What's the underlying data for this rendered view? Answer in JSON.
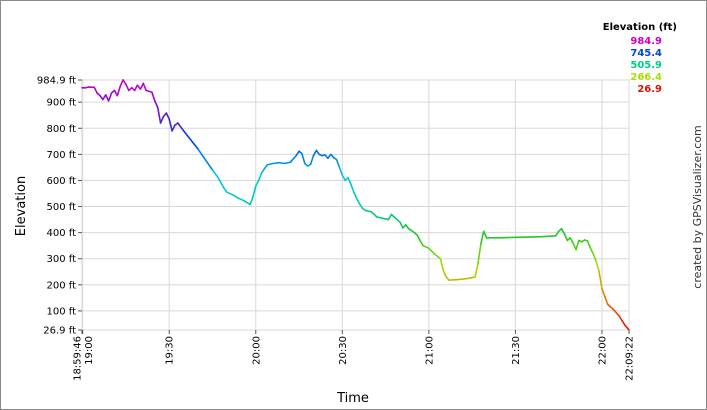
{
  "chart_data": {
    "type": "line",
    "xlabel": "Time",
    "ylabel": "Elevation",
    "ylim": [
      26.9,
      984.9
    ],
    "x_range": [
      "18:59:46",
      "22:09:22"
    ],
    "y_ticks": [
      {
        "value": 26.9,
        "label": "26.9 ft"
      },
      {
        "value": 100,
        "label": "100 ft"
      },
      {
        "value": 200,
        "label": "200 ft"
      },
      {
        "value": 300,
        "label": "300 ft"
      },
      {
        "value": 400,
        "label": "400 ft"
      },
      {
        "value": 500,
        "label": "500 ft"
      },
      {
        "value": 600,
        "label": "600 ft"
      },
      {
        "value": 700,
        "label": "700 ft"
      },
      {
        "value": 800,
        "label": "800 ft"
      },
      {
        "value": 900,
        "label": "900 ft"
      },
      {
        "value": 984.9,
        "label": "984.9 ft"
      }
    ],
    "x_ticks": [
      {
        "time": "18:59:46",
        "label": "18:59:46"
      },
      {
        "time": "19:00",
        "label": "19:00"
      },
      {
        "time": "19:30",
        "label": "19:30"
      },
      {
        "time": "20:00",
        "label": "20:00"
      },
      {
        "time": "20:30",
        "label": "20:30"
      },
      {
        "time": "21:00",
        "label": "21:00"
      },
      {
        "time": "21:30",
        "label": "21:30"
      },
      {
        "time": "22:00",
        "label": "22:00"
      },
      {
        "time": "22:09:22",
        "label": "22:09:22"
      }
    ],
    "points": [
      [
        "18:59:46",
        955
      ],
      [
        "19:01",
        955
      ],
      [
        "19:02",
        958
      ],
      [
        "19:04",
        957
      ],
      [
        "19:05",
        935
      ],
      [
        "19:06",
        925
      ],
      [
        "19:07",
        910
      ],
      [
        "19:08",
        928
      ],
      [
        "19:09",
        905
      ],
      [
        "19:10",
        935
      ],
      [
        "19:11",
        945
      ],
      [
        "19:12",
        925
      ],
      [
        "19:13",
        960
      ],
      [
        "19:14",
        985
      ],
      [
        "19:15",
        968
      ],
      [
        "19:16",
        945
      ],
      [
        "19:17",
        955
      ],
      [
        "19:18",
        945
      ],
      [
        "19:19",
        965
      ],
      [
        "19:20",
        950
      ],
      [
        "19:21",
        972
      ],
      [
        "19:22",
        945
      ],
      [
        "19:24",
        938
      ],
      [
        "19:25",
        905
      ],
      [
        "19:26",
        880
      ],
      [
        "19:27",
        820
      ],
      [
        "19:28",
        845
      ],
      [
        "19:29",
        858
      ],
      [
        "19:30",
        835
      ],
      [
        "19:31",
        790
      ],
      [
        "19:32",
        812
      ],
      [
        "19:33",
        820
      ],
      [
        "19:35",
        790
      ],
      [
        "19:40",
        720
      ],
      [
        "19:45",
        640
      ],
      [
        "19:47",
        610
      ],
      [
        "19:48",
        590
      ],
      [
        "19:49",
        570
      ],
      [
        "19:50",
        555
      ],
      [
        "19:52",
        545
      ],
      [
        "19:54",
        532
      ],
      [
        "19:56",
        522
      ],
      [
        "19:58",
        508
      ],
      [
        "19:59",
        535
      ],
      [
        "20:00",
        578
      ],
      [
        "20:01",
        600
      ],
      [
        "20:02",
        628
      ],
      [
        "20:03",
        645
      ],
      [
        "20:04",
        660
      ],
      [
        "20:06",
        665
      ],
      [
        "20:08",
        668
      ],
      [
        "20:10",
        665
      ],
      [
        "20:12",
        670
      ],
      [
        "20:14",
        695
      ],
      [
        "20:15",
        712
      ],
      [
        "20:16",
        703
      ],
      [
        "20:17",
        665
      ],
      [
        "20:18",
        655
      ],
      [
        "20:19",
        662
      ],
      [
        "20:20",
        695
      ],
      [
        "20:21",
        715
      ],
      [
        "20:22",
        700
      ],
      [
        "20:23",
        695
      ],
      [
        "20:24",
        698
      ],
      [
        "20:25",
        685
      ],
      [
        "20:26",
        700
      ],
      [
        "20:27",
        688
      ],
      [
        "20:28",
        680
      ],
      [
        "20:29",
        650
      ],
      [
        "20:30",
        620
      ],
      [
        "20:31",
        600
      ],
      [
        "20:32",
        610
      ],
      [
        "20:33",
        585
      ],
      [
        "20:34",
        555
      ],
      [
        "20:35",
        530
      ],
      [
        "20:36",
        510
      ],
      [
        "20:37",
        493
      ],
      [
        "20:38",
        485
      ],
      [
        "20:40",
        480
      ],
      [
        "20:42",
        460
      ],
      [
        "20:44",
        455
      ],
      [
        "20:46",
        450
      ],
      [
        "20:47",
        470
      ],
      [
        "20:48",
        460
      ],
      [
        "20:50",
        440
      ],
      [
        "20:51",
        418
      ],
      [
        "20:52",
        430
      ],
      [
        "20:53",
        415
      ],
      [
        "20:55",
        400
      ],
      [
        "20:56",
        390
      ],
      [
        "20:57",
        368
      ],
      [
        "20:58",
        350
      ],
      [
        "21:00",
        340
      ],
      [
        "21:02",
        318
      ],
      [
        "21:04",
        300
      ],
      [
        "21:05",
        255
      ],
      [
        "21:06",
        230
      ],
      [
        "21:07",
        218
      ],
      [
        "21:10",
        220
      ],
      [
        "21:14",
        225
      ],
      [
        "21:16",
        230
      ],
      [
        "21:17",
        280
      ],
      [
        "21:18",
        355
      ],
      [
        "21:19",
        405
      ],
      [
        "21:20",
        380
      ],
      [
        "21:25",
        380
      ],
      [
        "21:30",
        382
      ],
      [
        "21:35",
        383
      ],
      [
        "21:40",
        385
      ],
      [
        "21:44",
        388
      ],
      [
        "21:45",
        405
      ],
      [
        "21:46",
        415
      ],
      [
        "21:47",
        395
      ],
      [
        "21:48",
        370
      ],
      [
        "21:49",
        380
      ],
      [
        "21:50",
        360
      ],
      [
        "21:51",
        335
      ],
      [
        "21:52",
        370
      ],
      [
        "21:53",
        365
      ],
      [
        "21:54",
        372
      ],
      [
        "21:55",
        368
      ],
      [
        "21:56",
        340
      ],
      [
        "21:57",
        318
      ],
      [
        "21:58",
        290
      ],
      [
        "21:59",
        250
      ],
      [
        "22:00",
        185
      ],
      [
        "22:01",
        155
      ],
      [
        "22:02",
        125
      ],
      [
        "22:04",
        105
      ],
      [
        "22:06",
        80
      ],
      [
        "22:07",
        62
      ],
      [
        "22:08",
        45
      ],
      [
        "22:09:22",
        26.9
      ]
    ],
    "color_scale": {
      "title": "Elevation (ft)",
      "entries": [
        {
          "value": "984.9",
          "color": "#cc00cc"
        },
        {
          "value": "745.4",
          "color": "#0044dd"
        },
        {
          "value": "505.9",
          "color": "#00cc88"
        },
        {
          "value": "266.4",
          "color": "#aadd00"
        },
        {
          "value": "26.9",
          "color": "#dd1100"
        }
      ],
      "placement": "top-right"
    },
    "grid": true
  },
  "credit": "created by GPSVisualizer.com"
}
